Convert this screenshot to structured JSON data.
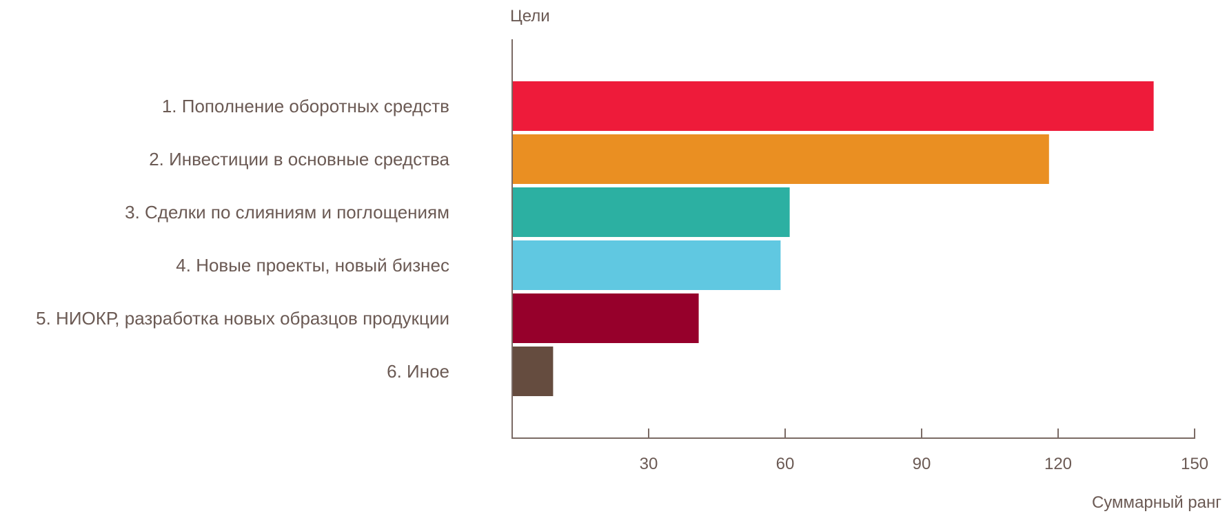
{
  "chart_data": {
    "type": "bar",
    "orientation": "horizontal",
    "categories": [
      "1. Пополнение оборотных средств",
      "2. Инвестиции в основные средства",
      "3. Сделки по слияниям и поглощениям",
      "4. Новые проекты, новый бизнес",
      "5. НИОКР, разработка новых образцов продукции",
      "6. Иное"
    ],
    "values": [
      141,
      118,
      61,
      59,
      41,
      9
    ],
    "colors": [
      "#ee1b3a",
      "#ea8f22",
      "#2cb0a2",
      "#60c8e1",
      "#96002b",
      "#654c3f"
    ],
    "ylabel": "Цели",
    "xlabel": "Суммарный ранг",
    "xlim": [
      0,
      150
    ],
    "xticks": [
      30,
      60,
      90,
      120,
      150
    ],
    "grid": false,
    "axis_color": "#7a6a64",
    "text_color": "#6b5a54"
  }
}
